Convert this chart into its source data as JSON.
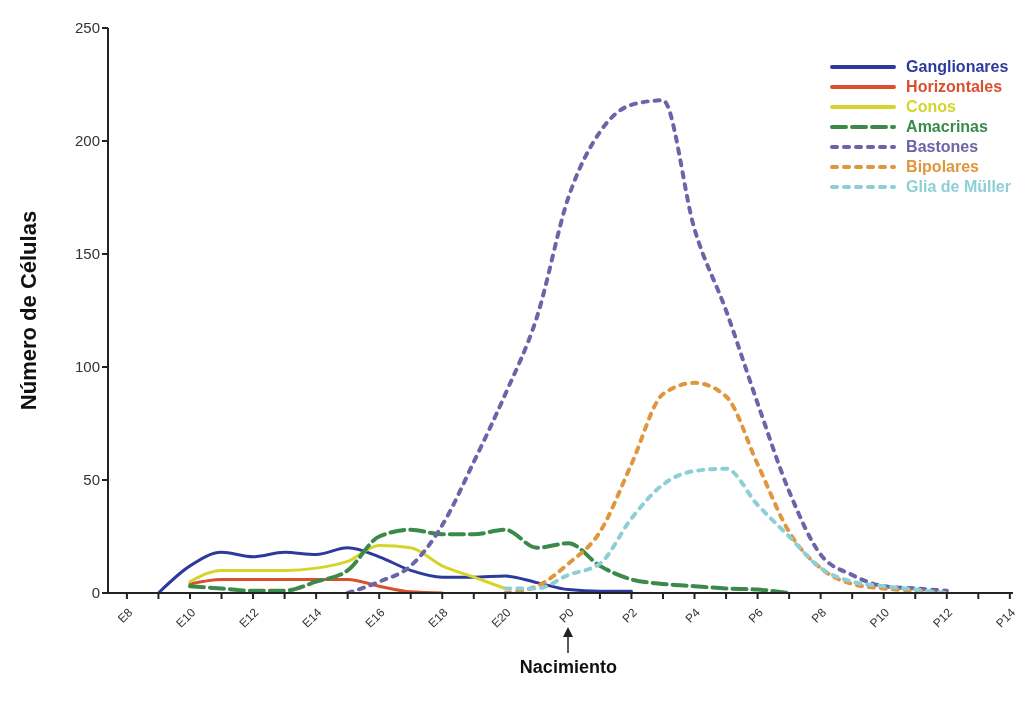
{
  "chart_data": {
    "type": "line",
    "ylabel": "Número de Células",
    "ylim": [
      0,
      250
    ],
    "yticks": [
      0,
      50,
      100,
      150,
      200,
      250
    ],
    "categories": [
      "E8",
      null,
      "E10",
      null,
      "E12",
      null,
      "E14",
      null,
      "E16",
      null,
      "E18",
      null,
      "E20",
      null,
      "P0",
      null,
      "P2",
      null,
      "P4",
      null,
      "P6",
      null,
      "P8",
      null,
      "P10",
      null,
      "P12",
      null,
      "P14"
    ],
    "legend": "top right",
    "grid": false,
    "marker": "none",
    "annotations": [
      "Nacimiento"
    ],
    "series": [
      {
        "name": "Ganglionares",
        "color": "#2c3a9c",
        "line_style": "solid",
        "values": [
          null,
          0,
          12,
          18,
          16,
          18,
          17,
          20,
          16,
          10,
          7,
          7,
          7.5,
          4.6,
          1.5,
          0.8,
          0.8,
          null,
          null,
          null,
          null,
          null,
          null,
          null,
          null,
          null,
          null,
          null,
          null
        ]
      },
      {
        "name": "Horizontales",
        "color": "#d9502e",
        "line_style": "solid",
        "values": [
          null,
          null,
          4,
          6,
          6,
          6,
          6,
          6,
          3,
          0.5,
          0,
          null,
          null,
          null,
          null,
          null,
          null,
          null,
          null,
          null,
          null,
          null,
          null,
          null,
          null,
          null,
          null,
          null,
          null
        ]
      },
      {
        "name": "Conos",
        "color": "#d4d42a",
        "line_style": "solid",
        "values": [
          null,
          null,
          5,
          10,
          10,
          10,
          11,
          14,
          21,
          20,
          12,
          7,
          2,
          null,
          null,
          null,
          null,
          null,
          null,
          null,
          null,
          null,
          null,
          null,
          null,
          null,
          null,
          null,
          null
        ]
      },
      {
        "name": "Amacrinas",
        "color": "#3a8a4a",
        "line_style": "dashed",
        "values": [
          null,
          null,
          3,
          2,
          1,
          1,
          5,
          10,
          25,
          28,
          26,
          26,
          28,
          20,
          22,
          12,
          6,
          4,
          3,
          2,
          1.5,
          0,
          null,
          null,
          null,
          null,
          null,
          null,
          null
        ]
      },
      {
        "name": "Bastones",
        "color": "#6a64a8",
        "line_style": "dotted",
        "values": [
          null,
          null,
          null,
          null,
          null,
          null,
          null,
          0,
          5,
          12,
          30,
          58,
          88,
          122,
          175,
          204,
          216,
          218,
          161,
          125,
          84,
          45,
          17,
          8,
          3,
          2,
          1,
          null,
          null
        ]
      },
      {
        "name": "Bipolares",
        "color": "#e0963c",
        "line_style": "dotted",
        "values": [
          null,
          null,
          null,
          null,
          null,
          null,
          null,
          null,
          null,
          null,
          null,
          null,
          0,
          3,
          13,
          27,
          57,
          88,
          93,
          87,
          57,
          27,
          11,
          4,
          2,
          1,
          0,
          null,
          null
        ]
      },
      {
        "name": "Glia de Müller",
        "color": "#8ccfd6",
        "line_style": "dotted",
        "values": [
          null,
          null,
          null,
          null,
          null,
          null,
          null,
          null,
          null,
          null,
          null,
          null,
          2,
          2,
          8,
          13,
          33,
          48,
          54,
          55,
          39,
          25,
          11,
          5,
          3,
          1.5,
          0,
          null,
          null
        ]
      }
    ]
  }
}
